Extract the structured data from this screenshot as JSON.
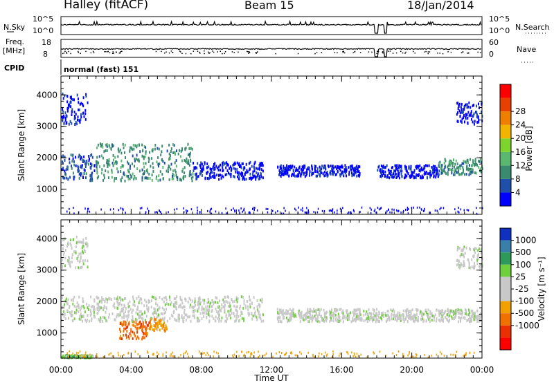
{
  "header": {
    "station": "Halley (fitACF)",
    "beam": "Beam 15",
    "date": "18/Jan/2014"
  },
  "top_panels": {
    "nsky_label": "N.Sky",
    "nsky_ticks": [
      "10^5",
      "10^0"
    ],
    "nsearch_label": "N.Search",
    "nsearch_ticks": [
      "10^5",
      "10^0"
    ],
    "freq_label": "Freq.",
    "freq_unit": "[MHz]",
    "freq_ticks": [
      "18",
      "8"
    ],
    "nave_label": "Nave",
    "nave_ticks": [
      "60",
      "0"
    ],
    "cpid_label": "CPID",
    "cpid_text": "normal (fast) 151"
  },
  "chart_data": [
    {
      "type": "heatmap",
      "name": "power",
      "ylabel": "Slant Range [km]",
      "ylim": [
        200,
        4600
      ],
      "yticks": [
        "1000",
        "2000",
        "3000",
        "4000"
      ],
      "colorbar_label": "Power [dB]",
      "colorbar_ticks": [
        "4",
        "8",
        "12",
        "16",
        "20",
        "24",
        "28"
      ],
      "colors": [
        "#0000ff",
        "#1f4fa8",
        "#3a8a70",
        "#5ab96e",
        "#7cd42c",
        "#f2b400",
        "#f07f00",
        "#e84000",
        "#ff0000"
      ],
      "bands": [
        {
          "t": [
            0.0,
            2.0
          ],
          "r": [
            1300,
            2150
          ],
          "level": 1
        },
        {
          "t": [
            2.0,
            7.5
          ],
          "r": [
            1300,
            2500
          ],
          "level": 2
        },
        {
          "t": [
            7.5,
            11.5
          ],
          "r": [
            1350,
            1900
          ],
          "level": 0
        },
        {
          "t": [
            12.3,
            17.0
          ],
          "r": [
            1450,
            1800
          ],
          "level": 0
        },
        {
          "t": [
            18.0,
            21.5
          ],
          "r": [
            1400,
            1800
          ],
          "level": 0
        },
        {
          "t": [
            21.5,
            24.0
          ],
          "r": [
            1500,
            2000
          ],
          "level": 2
        },
        {
          "t": [
            0.0,
            1.5
          ],
          "r": [
            3100,
            4100
          ],
          "level": 0
        },
        {
          "t": [
            22.5,
            24.0
          ],
          "r": [
            3100,
            3800
          ],
          "level": 0
        }
      ]
    },
    {
      "type": "heatmap",
      "name": "velocity",
      "ylabel": "Slant Range [km]",
      "ylim": [
        200,
        4600
      ],
      "yticks": [
        "1000",
        "2000",
        "3000",
        "4000"
      ],
      "colorbar_label": "Velocity [m s⁻¹]",
      "colorbar_ticks": [
        "1000",
        "500",
        "100",
        "25",
        "-25",
        "-100",
        "-500",
        "-1000"
      ],
      "colors": [
        "#1030c0",
        "#3a7fa8",
        "#2e9a5a",
        "#6fcf3e",
        "#c8c8c8",
        "#c8c8c8",
        "#f2a000",
        "#f07000",
        "#e83000",
        "#ff0000"
      ],
      "bands": [
        {
          "t": [
            0.0,
            11.5
          ],
          "r": [
            1400,
            2200
          ],
          "level": 4
        },
        {
          "t": [
            12.3,
            24.0
          ],
          "r": [
            1400,
            1800
          ],
          "level": 4
        },
        {
          "t": [
            3.3,
            5.0
          ],
          "r": [
            850,
            1400
          ],
          "level": 7
        },
        {
          "t": [
            5.0,
            6.0
          ],
          "r": [
            1100,
            1500
          ],
          "level": 6
        },
        {
          "t": [
            0.0,
            1.5
          ],
          "r": [
            3100,
            4100
          ],
          "level": 4
        },
        {
          "t": [
            22.5,
            24.0
          ],
          "r": [
            3100,
            3800
          ],
          "level": 4
        },
        {
          "t": [
            0.0,
            1.8
          ],
          "r": [
            250,
            330
          ],
          "level": 3
        }
      ]
    }
  ],
  "xaxis": {
    "label": "Time UT",
    "ticks": [
      "00:00",
      "04:00",
      "08:00",
      "12:00",
      "16:00",
      "20:00",
      "00:00"
    ]
  }
}
